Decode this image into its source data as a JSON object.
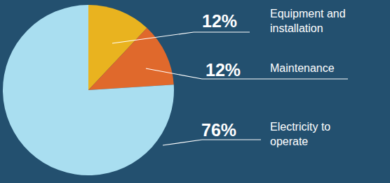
{
  "chart_data": {
    "type": "pie",
    "categories": [
      "Equipment and installation",
      "Maintenance",
      "Electricity to operate"
    ],
    "values": [
      12,
      12,
      76
    ],
    "value_labels": [
      "12%",
      "12%",
      "76%"
    ],
    "colors": [
      "#e9b31f",
      "#e0692c",
      "#a9def0"
    ],
    "data_labels": true
  }
}
